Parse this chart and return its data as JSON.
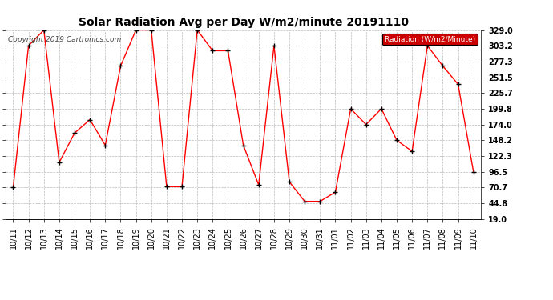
{
  "title": "Solar Radiation Avg per Day W/m2/minute 20191110",
  "copyright": "Copyright 2019 Cartronics.com",
  "legend_label": "Radiation (W/m2/Minute)",
  "ylim": [
    19.0,
    329.0
  ],
  "yticks": [
    19.0,
    44.8,
    70.7,
    96.5,
    122.3,
    148.2,
    174.0,
    199.8,
    225.7,
    251.5,
    277.3,
    303.2,
    329.0
  ],
  "dates": [
    "10/11",
    "10/12",
    "10/13",
    "10/14",
    "10/15",
    "10/16",
    "10/17",
    "10/18",
    "10/19",
    "10/20",
    "10/21",
    "10/22",
    "10/23",
    "10/24",
    "10/25",
    "10/26",
    "10/27",
    "10/28",
    "10/29",
    "10/30",
    "10/31",
    "11/01",
    "11/02",
    "11/03",
    "11/04",
    "11/05",
    "11/06",
    "11/07",
    "11/08",
    "11/09",
    "11/10"
  ],
  "values": [
    70.7,
    303.2,
    329.0,
    112.0,
    160.0,
    182.0,
    140.0,
    270.0,
    329.0,
    329.0,
    72.0,
    72.0,
    329.0,
    295.0,
    295.0,
    140.0,
    75.0,
    303.2,
    80.0,
    48.0,
    48.0,
    63.0,
    199.8,
    174.0,
    199.8,
    148.2,
    130.0,
    303.2,
    270.0,
    240.0,
    96.5
  ],
  "line_color": "#ff0000",
  "marker_color": "#000000",
  "background_color": "#ffffff",
  "grid_color": "#bbbbbb",
  "legend_bg": "#cc0000",
  "legend_text_color": "#ffffff",
  "title_fontsize": 10,
  "tick_fontsize": 7,
  "copyright_fontsize": 6.5
}
